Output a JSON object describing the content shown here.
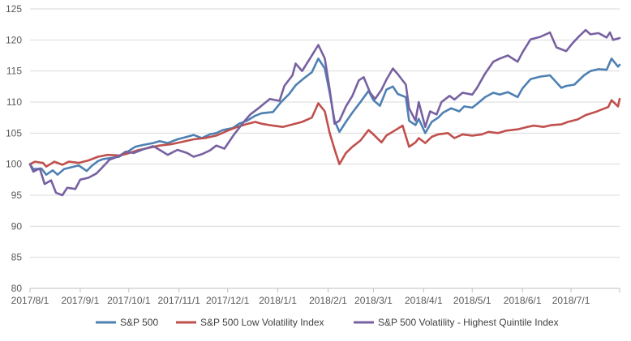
{
  "chart_data": {
    "type": "line",
    "title": "",
    "xlabel": "",
    "ylabel": "",
    "ylim": [
      80,
      125
    ],
    "yticks": [
      80,
      85,
      90,
      95,
      100,
      105,
      110,
      115,
      120,
      125
    ],
    "xlim": [
      "2017-08-01",
      "2018-07-31"
    ],
    "xtick_labels": [
      "2017/8/1",
      "2017/9/1",
      "2017/10/1",
      "2017/11/1",
      "2017/12/1",
      "2018/1/1",
      "2018/2/1",
      "2018/3/1",
      "2018/4/1",
      "2018/5/1",
      "2018/6/1",
      "2018/7/1"
    ],
    "xtick_dates": [
      "2017-08-01",
      "2017-09-01",
      "2017-10-01",
      "2017-11-01",
      "2017-12-01",
      "2018-01-01",
      "2018-02-01",
      "2018-03-01",
      "2018-04-01",
      "2018-05-01",
      "2018-06-01",
      "2018-07-01"
    ],
    "grid": "horizontal",
    "legend_position": "bottom",
    "series": [
      {
        "name": "S&P 500",
        "color": "#4e81b3",
        "points": [
          [
            "2017-08-01",
            100.0
          ],
          [
            "2017-08-03",
            99.2
          ],
          [
            "2017-08-08",
            99.3
          ],
          [
            "2017-08-11",
            98.3
          ],
          [
            "2017-08-15",
            99.0
          ],
          [
            "2017-08-18",
            98.3
          ],
          [
            "2017-08-22",
            99.2
          ],
          [
            "2017-08-25",
            99.4
          ],
          [
            "2017-08-31",
            99.8
          ],
          [
            "2017-09-05",
            98.9
          ],
          [
            "2017-09-08",
            99.7
          ],
          [
            "2017-09-12",
            100.5
          ],
          [
            "2017-09-15",
            100.8
          ],
          [
            "2017-09-20",
            101.0
          ],
          [
            "2017-09-25",
            101.2
          ],
          [
            "2017-09-29",
            101.8
          ],
          [
            "2017-10-05",
            102.8
          ],
          [
            "2017-10-10",
            103.1
          ],
          [
            "2017-10-16",
            103.4
          ],
          [
            "2017-10-20",
            103.7
          ],
          [
            "2017-10-25",
            103.4
          ],
          [
            "2017-10-31",
            104.0
          ],
          [
            "2017-11-06",
            104.4
          ],
          [
            "2017-11-10",
            104.7
          ],
          [
            "2017-11-15",
            104.2
          ],
          [
            "2017-11-20",
            104.8
          ],
          [
            "2017-11-24",
            105.0
          ],
          [
            "2017-11-28",
            105.5
          ],
          [
            "2017-12-04",
            105.8
          ],
          [
            "2017-12-08",
            106.5
          ],
          [
            "2017-12-13",
            107.0
          ],
          [
            "2017-12-18",
            107.8
          ],
          [
            "2017-12-22",
            108.2
          ],
          [
            "2017-12-29",
            108.4
          ],
          [
            "2018-01-03",
            110.0
          ],
          [
            "2018-01-08",
            111.3
          ],
          [
            "2018-01-12",
            112.7
          ],
          [
            "2018-01-17",
            113.8
          ],
          [
            "2018-01-22",
            114.8
          ],
          [
            "2018-01-26",
            117.0
          ],
          [
            "2018-01-30",
            115.4
          ],
          [
            "2018-02-02",
            111.5
          ],
          [
            "2018-02-05",
            107.0
          ],
          [
            "2018-02-08",
            105.2
          ],
          [
            "2018-02-12",
            106.8
          ],
          [
            "2018-02-16",
            108.3
          ],
          [
            "2018-02-21",
            110.0
          ],
          [
            "2018-02-26",
            111.8
          ],
          [
            "2018-03-01",
            110.3
          ],
          [
            "2018-03-05",
            109.4
          ],
          [
            "2018-03-09",
            112.0
          ],
          [
            "2018-03-13",
            112.5
          ],
          [
            "2018-03-16",
            111.3
          ],
          [
            "2018-03-21",
            110.8
          ],
          [
            "2018-03-23",
            107.0
          ],
          [
            "2018-03-27",
            106.3
          ],
          [
            "2018-03-29",
            107.3
          ],
          [
            "2018-04-02",
            105.0
          ],
          [
            "2018-04-06",
            106.8
          ],
          [
            "2018-04-10",
            107.5
          ],
          [
            "2018-04-13",
            108.3
          ],
          [
            "2018-04-18",
            109.0
          ],
          [
            "2018-04-23",
            108.5
          ],
          [
            "2018-04-26",
            109.3
          ],
          [
            "2018-05-01",
            109.1
          ],
          [
            "2018-05-04",
            109.7
          ],
          [
            "2018-05-09",
            110.8
          ],
          [
            "2018-05-14",
            111.5
          ],
          [
            "2018-05-18",
            111.2
          ],
          [
            "2018-05-23",
            111.6
          ],
          [
            "2018-05-29",
            110.8
          ],
          [
            "2018-06-01",
            112.2
          ],
          [
            "2018-06-06",
            113.7
          ],
          [
            "2018-06-12",
            114.1
          ],
          [
            "2018-06-18",
            114.3
          ],
          [
            "2018-06-25",
            112.3
          ],
          [
            "2018-06-28",
            112.6
          ],
          [
            "2018-07-03",
            112.8
          ],
          [
            "2018-07-09",
            114.3
          ],
          [
            "2018-07-13",
            115.0
          ],
          [
            "2018-07-18",
            115.3
          ],
          [
            "2018-07-23",
            115.2
          ],
          [
            "2018-07-26",
            117.0
          ],
          [
            "2018-07-30",
            115.7
          ],
          [
            "2018-07-31",
            116.0
          ]
        ]
      },
      {
        "name": "S&P 500 Low Volatility Index",
        "color": "#c0504d",
        "points": [
          [
            "2017-08-01",
            100.0
          ],
          [
            "2017-08-04",
            100.4
          ],
          [
            "2017-08-09",
            100.2
          ],
          [
            "2017-08-11",
            99.6
          ],
          [
            "2017-08-16",
            100.4
          ],
          [
            "2017-08-21",
            99.9
          ],
          [
            "2017-08-25",
            100.4
          ],
          [
            "2017-08-31",
            100.2
          ],
          [
            "2017-09-06",
            100.6
          ],
          [
            "2017-09-12",
            101.2
          ],
          [
            "2017-09-18",
            101.5
          ],
          [
            "2017-09-25",
            101.4
          ],
          [
            "2017-09-29",
            101.6
          ],
          [
            "2017-10-06",
            102.2
          ],
          [
            "2017-10-13",
            102.6
          ],
          [
            "2017-10-20",
            103.0
          ],
          [
            "2017-10-27",
            103.2
          ],
          [
            "2017-11-03",
            103.6
          ],
          [
            "2017-11-10",
            104.0
          ],
          [
            "2017-11-17",
            104.2
          ],
          [
            "2017-11-24",
            104.6
          ],
          [
            "2017-12-01",
            105.4
          ],
          [
            "2017-12-07",
            106.0
          ],
          [
            "2017-12-12",
            106.4
          ],
          [
            "2017-12-18",
            106.8
          ],
          [
            "2017-12-22",
            106.5
          ],
          [
            "2017-12-29",
            106.2
          ],
          [
            "2018-01-04",
            106.0
          ],
          [
            "2018-01-10",
            106.4
          ],
          [
            "2018-01-16",
            106.8
          ],
          [
            "2018-01-22",
            107.5
          ],
          [
            "2018-01-26",
            109.8
          ],
          [
            "2018-01-30",
            108.5
          ],
          [
            "2018-02-02",
            105.0
          ],
          [
            "2018-02-05",
            102.4
          ],
          [
            "2018-02-08",
            100.0
          ],
          [
            "2018-02-12",
            101.8
          ],
          [
            "2018-02-16",
            102.8
          ],
          [
            "2018-02-21",
            103.8
          ],
          [
            "2018-02-26",
            105.5
          ],
          [
            "2018-03-01",
            104.8
          ],
          [
            "2018-03-06",
            103.5
          ],
          [
            "2018-03-09",
            104.6
          ],
          [
            "2018-03-14",
            105.4
          ],
          [
            "2018-03-19",
            106.2
          ],
          [
            "2018-03-23",
            102.8
          ],
          [
            "2018-03-27",
            103.5
          ],
          [
            "2018-03-29",
            104.2
          ],
          [
            "2018-04-02",
            103.4
          ],
          [
            "2018-04-06",
            104.4
          ],
          [
            "2018-04-10",
            104.8
          ],
          [
            "2018-04-16",
            105.0
          ],
          [
            "2018-04-20",
            104.2
          ],
          [
            "2018-04-25",
            104.8
          ],
          [
            "2018-05-01",
            104.6
          ],
          [
            "2018-05-07",
            104.8
          ],
          [
            "2018-05-11",
            105.2
          ],
          [
            "2018-05-17",
            105.0
          ],
          [
            "2018-05-22",
            105.4
          ],
          [
            "2018-05-29",
            105.6
          ],
          [
            "2018-06-04",
            106.0
          ],
          [
            "2018-06-08",
            106.2
          ],
          [
            "2018-06-14",
            106.0
          ],
          [
            "2018-06-19",
            106.3
          ],
          [
            "2018-06-25",
            106.4
          ],
          [
            "2018-06-29",
            106.8
          ],
          [
            "2018-07-05",
            107.2
          ],
          [
            "2018-07-10",
            107.9
          ],
          [
            "2018-07-16",
            108.4
          ],
          [
            "2018-07-20",
            108.8
          ],
          [
            "2018-07-24",
            109.2
          ],
          [
            "2018-07-26",
            110.3
          ],
          [
            "2018-07-30",
            109.3
          ],
          [
            "2018-07-31",
            110.5
          ]
        ]
      },
      {
        "name": "S&P 500 Volatility - Highest Quintile Index",
        "color": "#7761a1",
        "points": [
          [
            "2017-08-01",
            100.0
          ],
          [
            "2017-08-03",
            98.8
          ],
          [
            "2017-08-07",
            99.3
          ],
          [
            "2017-08-10",
            96.8
          ],
          [
            "2017-08-14",
            97.4
          ],
          [
            "2017-08-17",
            95.4
          ],
          [
            "2017-08-21",
            95.0
          ],
          [
            "2017-08-24",
            96.2
          ],
          [
            "2017-08-29",
            96.0
          ],
          [
            "2017-09-01",
            97.5
          ],
          [
            "2017-09-06",
            97.8
          ],
          [
            "2017-09-11",
            98.5
          ],
          [
            "2017-09-14",
            99.3
          ],
          [
            "2017-09-19",
            100.7
          ],
          [
            "2017-09-25",
            101.3
          ],
          [
            "2017-09-29",
            102.0
          ],
          [
            "2017-10-04",
            101.8
          ],
          [
            "2017-10-10",
            102.4
          ],
          [
            "2017-10-16",
            102.9
          ],
          [
            "2017-10-20",
            102.3
          ],
          [
            "2017-10-25",
            101.5
          ],
          [
            "2017-10-31",
            102.3
          ],
          [
            "2017-11-06",
            101.8
          ],
          [
            "2017-11-10",
            101.2
          ],
          [
            "2017-11-15",
            101.6
          ],
          [
            "2017-11-20",
            102.2
          ],
          [
            "2017-11-24",
            103.0
          ],
          [
            "2017-11-29",
            102.5
          ],
          [
            "2017-12-05",
            104.8
          ],
          [
            "2017-12-11",
            106.8
          ],
          [
            "2017-12-15",
            108.0
          ],
          [
            "2017-12-20",
            109.0
          ],
          [
            "2017-12-27",
            110.5
          ],
          [
            "2018-01-02",
            110.2
          ],
          [
            "2018-01-05",
            112.6
          ],
          [
            "2018-01-10",
            114.3
          ],
          [
            "2018-01-12",
            116.2
          ],
          [
            "2018-01-16",
            115.0
          ],
          [
            "2018-01-22",
            117.5
          ],
          [
            "2018-01-26",
            119.2
          ],
          [
            "2018-01-30",
            117.0
          ],
          [
            "2018-02-02",
            112.0
          ],
          [
            "2018-02-05",
            106.5
          ],
          [
            "2018-02-08",
            107.0
          ],
          [
            "2018-02-12",
            109.3
          ],
          [
            "2018-02-16",
            111.0
          ],
          [
            "2018-02-20",
            113.5
          ],
          [
            "2018-02-23",
            114.0
          ],
          [
            "2018-02-27",
            111.5
          ],
          [
            "2018-03-02",
            110.5
          ],
          [
            "2018-03-06",
            112.0
          ],
          [
            "2018-03-09",
            113.6
          ],
          [
            "2018-03-13",
            115.4
          ],
          [
            "2018-03-16",
            114.5
          ],
          [
            "2018-03-21",
            112.8
          ],
          [
            "2018-03-23",
            109.0
          ],
          [
            "2018-03-27",
            107.0
          ],
          [
            "2018-03-29",
            110.0
          ],
          [
            "2018-04-02",
            106.0
          ],
          [
            "2018-04-05",
            108.5
          ],
          [
            "2018-04-09",
            108.0
          ],
          [
            "2018-04-12",
            110.0
          ],
          [
            "2018-04-17",
            111.0
          ],
          [
            "2018-04-20",
            110.4
          ],
          [
            "2018-04-25",
            111.5
          ],
          [
            "2018-05-01",
            111.2
          ],
          [
            "2018-05-04",
            112.3
          ],
          [
            "2018-05-09",
            114.6
          ],
          [
            "2018-05-14",
            116.5
          ],
          [
            "2018-05-18",
            117.0
          ],
          [
            "2018-05-23",
            117.5
          ],
          [
            "2018-05-29",
            116.5
          ],
          [
            "2018-06-01",
            118.0
          ],
          [
            "2018-06-06",
            120.1
          ],
          [
            "2018-06-12",
            120.5
          ],
          [
            "2018-06-18",
            121.2
          ],
          [
            "2018-06-22",
            118.8
          ],
          [
            "2018-06-28",
            118.2
          ],
          [
            "2018-07-02",
            119.5
          ],
          [
            "2018-07-06",
            120.6
          ],
          [
            "2018-07-10",
            121.6
          ],
          [
            "2018-07-13",
            120.9
          ],
          [
            "2018-07-18",
            121.1
          ],
          [
            "2018-07-23",
            120.4
          ],
          [
            "2018-07-25",
            121.2
          ],
          [
            "2018-07-27",
            120.0
          ],
          [
            "2018-07-31",
            120.3
          ]
        ]
      }
    ]
  }
}
